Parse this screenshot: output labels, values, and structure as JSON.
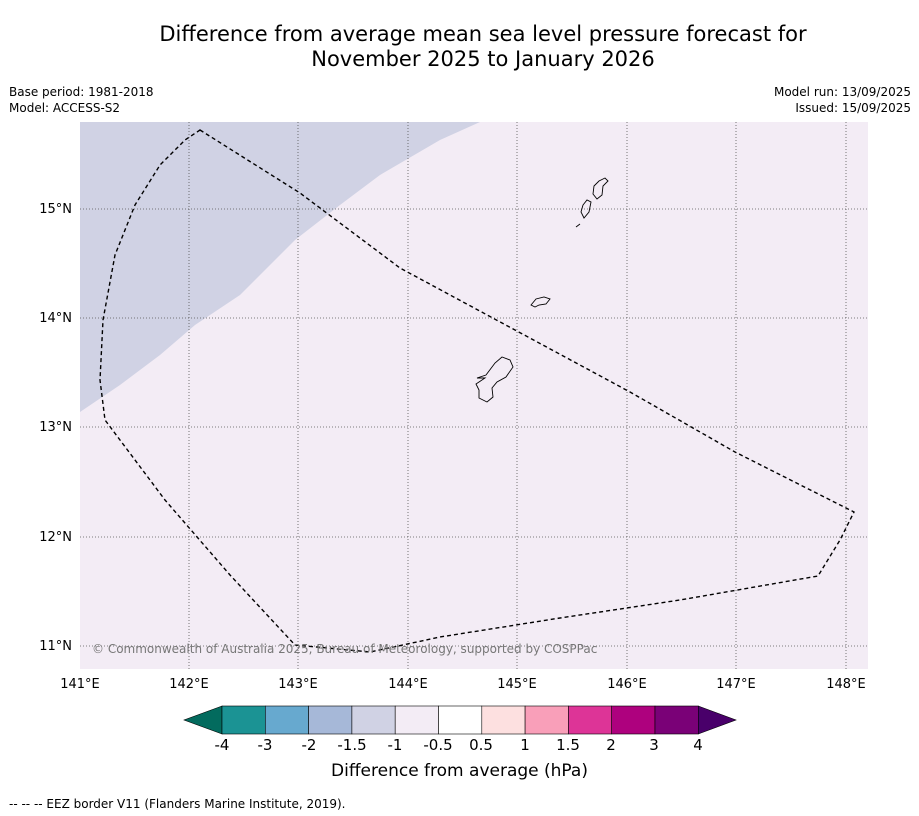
{
  "title_line1": "Difference from average mean sea level pressure forecast for",
  "title_line2": "November 2025 to January 2026",
  "meta": {
    "base_period": "Base period: 1981-2018",
    "model": "Model: ACCESS-S2",
    "model_run": "Model run: 13/09/2025",
    "issued": "Issued: 15/09/2025"
  },
  "map": {
    "lon_labels": [
      "141°E",
      "142°E",
      "143°E",
      "144°E",
      "145°E",
      "146°E",
      "147°E",
      "148°E"
    ],
    "lat_labels": [
      "15°N",
      "14°N",
      "13°N",
      "12°N",
      "11°N"
    ],
    "copyright": "© Commonwealth of Australia 2025, Bureau of Meteorology, supported by COSPPac",
    "field_colors": {
      "minus_1_to_minus_0_5": "#f3ecf5",
      "minus_1_5_to_minus_1": "#d0d2e4"
    }
  },
  "colorbar": {
    "title": "Difference from average (hPa)",
    "tick_labels": [
      "-4",
      "-3",
      "-2",
      "-1.5",
      "-1",
      "-0.5",
      "0.5",
      "1",
      "1.5",
      "2",
      "3",
      "4"
    ],
    "colors": [
      "#036b5e",
      "#1b9394",
      "#67a9cf",
      "#a6b8d8",
      "#d0d2e4",
      "#f3ecf5",
      "#ffffff",
      "#fde0e0",
      "#f99fb9",
      "#dd3497",
      "#ae017e",
      "#7a0177",
      "#49006a"
    ]
  },
  "footnote": "--  --  -- EEZ border V11 (Flanders Marine Institute, 2019)."
}
